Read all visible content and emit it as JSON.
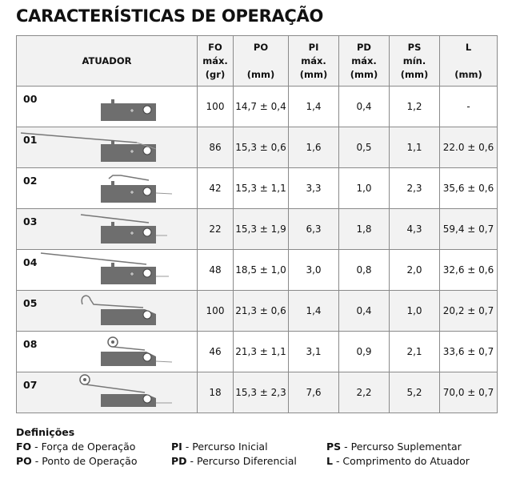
{
  "title": "CARACTERÍSTICAS DE OPERAÇÃO",
  "headers": {
    "atuador": "ATUADOR",
    "fo_l1": "FO",
    "fo_l2": "máx.",
    "fo_l3": "(gr)",
    "po_l1": "PO",
    "po_l3": "(mm)",
    "pi_l1": "PI",
    "pi_l2": "máx.",
    "pi_l3": "(mm)",
    "pd_l1": "PD",
    "pd_l2": "máx.",
    "pd_l3": "(mm)",
    "ps_l1": "PS",
    "ps_l2": "mín.",
    "ps_l3": "(mm)",
    "l_l1": "L",
    "l_l3": "(mm)"
  },
  "rows": [
    {
      "code": "00",
      "fo": "100",
      "po": "14,7 ± 0,4",
      "pi": "1,4",
      "pd": "0,4",
      "ps": "1,2",
      "l": "-"
    },
    {
      "code": "01",
      "fo": "86",
      "po": "15,3 ± 0,6",
      "pi": "1,6",
      "pd": "0,5",
      "ps": "1,1",
      "l": "22.0 ± 0,6"
    },
    {
      "code": "02",
      "fo": "42",
      "po": "15,3 ± 1,1",
      "pi": "3,3",
      "pd": "1,0",
      "ps": "2,3",
      "l": "35,6 ± 0,6"
    },
    {
      "code": "03",
      "fo": "22",
      "po": "15,3 ± 1,9",
      "pi": "6,3",
      "pd": "1,8",
      "ps": "4,3",
      "l": "59,4 ± 0,7"
    },
    {
      "code": "04",
      "fo": "48",
      "po": "18,5 ± 1,0",
      "pi": "3,0",
      "pd": "0,8",
      "ps": "2,0",
      "l": "32,6 ± 0,6"
    },
    {
      "code": "05",
      "fo": "100",
      "po": "21,3 ± 0,6",
      "pi": "1,4",
      "pd": "0,4",
      "ps": "1,0",
      "l": "20,2 ± 0,7"
    },
    {
      "code": "08",
      "fo": "46",
      "po": "21,3 ± 1,1",
      "pi": "3,1",
      "pd": "0,9",
      "ps": "2,1",
      "l": "33,6 ± 0,7"
    },
    {
      "code": "07",
      "fo": "18",
      "po": "15,3 ± 2,3",
      "pi": "7,6",
      "pd": "2,2",
      "ps": "5,2",
      "l": "70,0 ± 0,7"
    }
  ],
  "definitions": {
    "title": "Definições",
    "items": [
      {
        "abbr": "FO",
        "text": " - Força de Operação"
      },
      {
        "abbr": "PO",
        "text": " - Ponto de Operação"
      },
      {
        "abbr": "PI",
        "text": " - Percurso Inicial"
      },
      {
        "abbr": "PD",
        "text": " - Percurso Diferencial"
      },
      {
        "abbr": "PS",
        "text": " - Percurso Suplementar"
      },
      {
        "abbr": "L",
        "text": " - Comprimento do Atuador"
      }
    ]
  }
}
